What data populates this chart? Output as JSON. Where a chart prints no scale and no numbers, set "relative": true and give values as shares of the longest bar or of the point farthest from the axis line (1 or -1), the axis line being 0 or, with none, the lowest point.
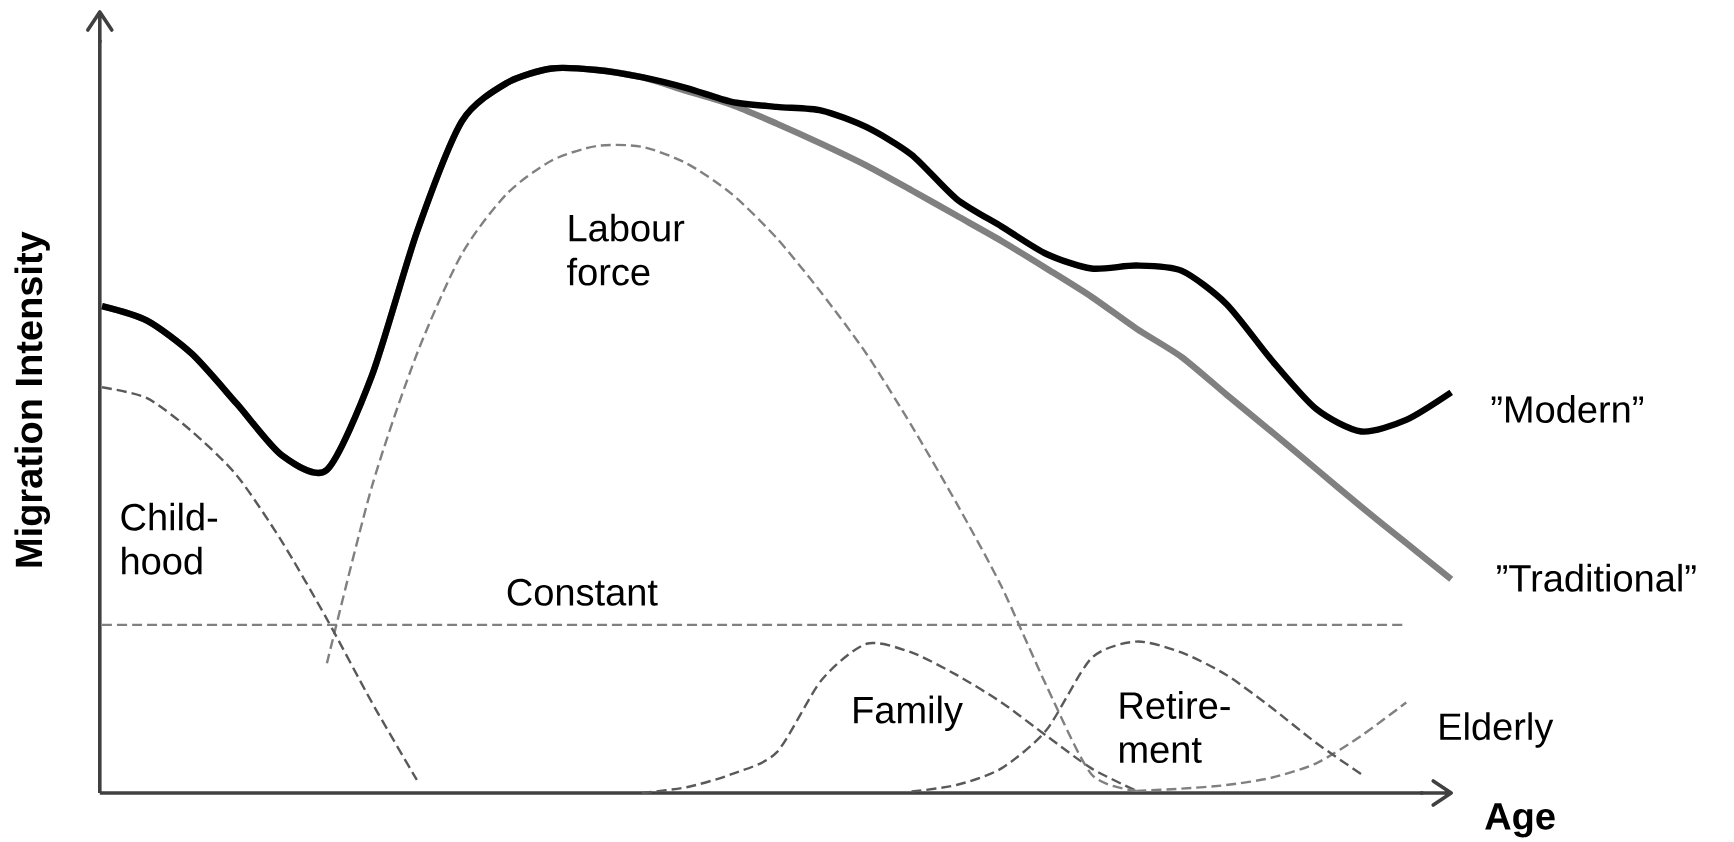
{
  "chart_data": {
    "type": "line",
    "relative": true,
    "xlabel": "Age",
    "ylabel": "Migration Intensity",
    "categories": [
      null,
      null,
      null,
      null,
      null,
      null,
      null,
      null,
      null,
      null,
      null,
      null,
      null,
      null,
      null,
      null,
      null,
      null,
      null,
      null,
      null,
      null,
      null,
      null,
      null,
      null,
      null,
      null,
      null,
      null,
      null
    ],
    "series": [
      {
        "name": "”Modern”",
        "color": "#000000",
        "line_style": "solid",
        "values": [
          0.672,
          0.652,
          0.606,
          0.537,
          0.466,
          0.446,
          0.576,
          0.774,
          0.927,
          0.98,
          1.0,
          0.998,
          0.988,
          0.973,
          0.954,
          0.947,
          0.942,
          0.919,
          0.881,
          0.82,
          0.782,
          0.744,
          0.724,
          0.728,
          0.721,
          0.675,
          0.598,
          0.53,
          0.499,
          0.515,
          0.553
        ]
      },
      {
        "name": "”Traditional”",
        "color": "#808080",
        "line_style": "solid",
        "values": [
          0.672,
          0.652,
          0.606,
          0.537,
          0.466,
          0.446,
          0.576,
          0.774,
          0.927,
          0.98,
          1.0,
          0.998,
          0.988,
          0.969,
          0.95,
          0.924,
          0.896,
          0.866,
          0.832,
          0.797,
          0.762,
          0.724,
          0.685,
          0.641,
          0.602,
          0.55,
          0.499,
          0.447,
          0.395,
          0.345,
          0.295
        ]
      },
      {
        "name": "Child-hood",
        "color": "#595959",
        "line_style": "dashed",
        "values": [
          0.56,
          0.545,
          0.499,
          0.438,
          0.347,
          0.24,
          0.125,
          0.018,
          null,
          null,
          null,
          null,
          null,
          null,
          null,
          null,
          null,
          null,
          null,
          null,
          null,
          null,
          null,
          null,
          null,
          null,
          null,
          null,
          null,
          null,
          null
        ]
      },
      {
        "name": "Labour force",
        "color": "#808080",
        "line_style": "dashed",
        "values": [
          null,
          null,
          null,
          null,
          null,
          0.179,
          0.423,
          0.606,
          0.744,
          0.827,
          0.873,
          0.893,
          0.892,
          0.869,
          0.827,
          0.766,
          0.69,
          0.606,
          0.507,
          0.4,
          0.285,
          0.148,
          0.026,
          0.003,
          null,
          null,
          null,
          null,
          null,
          null,
          null
        ]
      },
      {
        "name": "Constant",
        "color": "#808080",
        "line_style": "dashed",
        "values": [
          0.232,
          0.232,
          0.232,
          0.232,
          0.232,
          0.232,
          0.232,
          0.232,
          0.232,
          0.232,
          0.232,
          0.232,
          0.232,
          0.232,
          0.232,
          0.232,
          0.232,
          0.232,
          0.232,
          0.232,
          0.232,
          0.232,
          0.232,
          0.232,
          0.232,
          0.232,
          0.232,
          0.232,
          0.232,
          0.232,
          null
        ]
      },
      {
        "name": "Family",
        "color": "#595959",
        "line_style": "dashed",
        "values": [
          null,
          null,
          null,
          null,
          null,
          null,
          null,
          null,
          null,
          null,
          null,
          null,
          0.0,
          0.008,
          0.026,
          0.056,
          0.156,
          0.206,
          0.194,
          0.163,
          0.125,
          0.079,
          0.034,
          0.003,
          null,
          null,
          null,
          null,
          null,
          null,
          null
        ]
      },
      {
        "name": "Retire-ment",
        "color": "#595959",
        "line_style": "dashed",
        "values": [
          null,
          null,
          null,
          null,
          null,
          null,
          null,
          null,
          null,
          null,
          null,
          null,
          null,
          null,
          null,
          null,
          null,
          null,
          0.002,
          0.011,
          0.034,
          0.087,
          0.186,
          0.209,
          0.194,
          0.163,
          0.118,
          0.069,
          0.026,
          null,
          null
        ]
      },
      {
        "name": "Elderly",
        "color": "#808080",
        "line_style": "dashed",
        "values": [
          null,
          null,
          null,
          null,
          null,
          null,
          null,
          null,
          null,
          null,
          null,
          null,
          null,
          null,
          null,
          null,
          null,
          null,
          null,
          null,
          null,
          null,
          null,
          0.003,
          0.006,
          0.011,
          0.021,
          0.041,
          0.079,
          0.125,
          null
        ]
      }
    ]
  }
}
